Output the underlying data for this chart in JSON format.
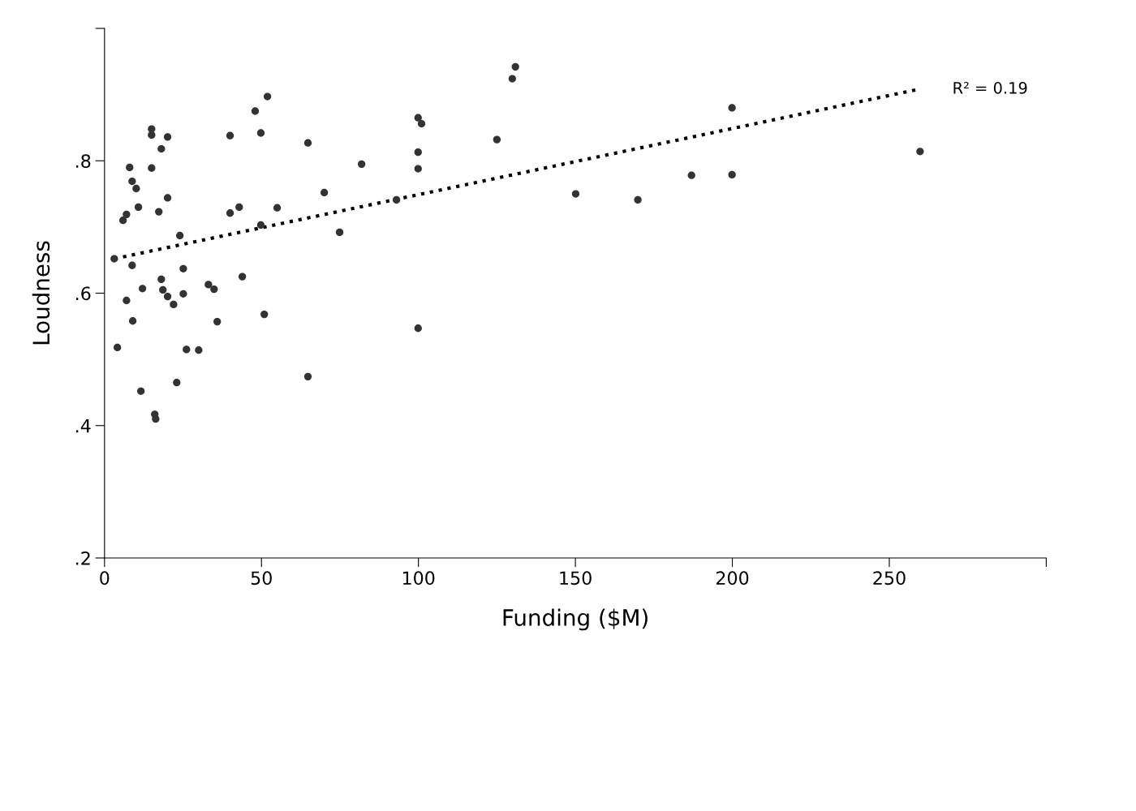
{
  "chart_data": {
    "type": "scatter",
    "xlabel": "Funding ($M)",
    "ylabel": "Loudness",
    "xlim": [
      0,
      300
    ],
    "xticks": [
      0,
      50,
      100,
      150,
      200,
      250,
      {
        "value": 300,
        "label": null
      }
    ],
    "ylim": [
      0.2,
      1.0
    ],
    "yticks": [
      {
        "value": 0.2,
        "label": ".2"
      },
      {
        "value": 0.4,
        "label": ".4"
      },
      {
        "value": 0.6,
        "label": ".6"
      },
      {
        "value": 0.8,
        "label": ".8"
      },
      {
        "value": 1.0,
        "label": null
      }
    ],
    "grid": false,
    "legend": false,
    "marker": "circle",
    "series": [
      {
        "color": "#333333",
        "x": [
          3.1,
          4.1,
          5.9,
          7.0,
          7.0,
          8.0,
          8.8,
          8.8,
          9.0,
          10.1,
          10.8,
          11.6,
          12.1,
          15.0,
          15.0,
          15.0,
          16.0,
          16.3,
          17.3,
          18.1,
          18.1,
          18.6,
          20.1,
          20.1,
          20.1,
          22.0,
          23.0,
          24.0,
          25.1,
          25.1,
          26.1,
          30.0,
          33.1,
          34.9,
          35.9,
          40.0,
          40.0,
          42.9,
          43.9,
          48.0,
          49.8,
          49.8,
          50.9,
          51.9,
          55.0,
          64.8,
          64.8,
          70.0,
          74.9,
          81.9,
          93.0,
          99.9,
          99.9,
          99.9,
          99.9,
          101.0,
          125.0,
          129.9,
          130.9,
          150.1,
          169.9,
          187.0,
          199.9,
          199.9,
          259.8
        ],
        "values": [
          0.652,
          0.518,
          0.71,
          0.719,
          0.589,
          0.79,
          0.642,
          0.769,
          0.558,
          0.758,
          0.73,
          0.452,
          0.607,
          0.848,
          0.839,
          0.789,
          0.417,
          0.41,
          0.723,
          0.818,
          0.621,
          0.605,
          0.836,
          0.744,
          0.595,
          0.583,
          0.465,
          0.687,
          0.637,
          0.599,
          0.515,
          0.514,
          0.613,
          0.606,
          0.557,
          0.838,
          0.721,
          0.73,
          0.625,
          0.875,
          0.842,
          0.703,
          0.568,
          0.897,
          0.729,
          0.827,
          0.474,
          0.752,
          0.692,
          0.795,
          0.741,
          0.865,
          0.813,
          0.788,
          0.547,
          0.856,
          0.832,
          0.924,
          0.942,
          0.75,
          0.741,
          0.778,
          0.88,
          0.779,
          0.814
        ]
      },
      {
        "type": "line",
        "color": "#000000",
        "line_style": "dotted",
        "marker": "none",
        "x": [
          3.1,
          259.3
        ],
        "values": [
          0.652,
          0.908
        ]
      }
    ],
    "annotations": [
      {
        "text": "R² = 0.19",
        "x": 259.3,
        "y": 0.908
      }
    ]
  }
}
